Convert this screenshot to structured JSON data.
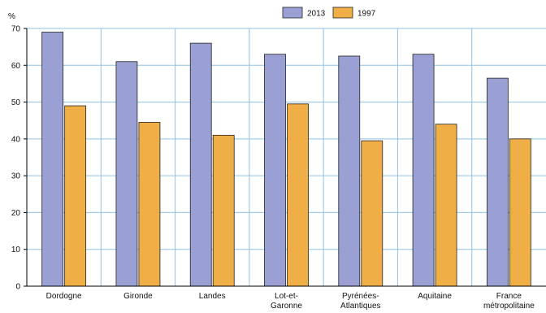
{
  "chart_data": {
    "type": "bar",
    "title": "",
    "ylabel": "%",
    "xlabel": "",
    "ylim": [
      0,
      70
    ],
    "yticks": [
      0,
      10,
      20,
      30,
      40,
      50,
      60,
      70
    ],
    "grid": true,
    "legend_position": "top-center",
    "categories": [
      [
        "Dordogne"
      ],
      [
        "Gironde"
      ],
      [
        "Landes"
      ],
      [
        "Lot-et-",
        "Garonne"
      ],
      [
        "Pyrénées-",
        "Atlantiques"
      ],
      [
        "Aquitaine"
      ],
      [
        "France",
        "métropolitaine"
      ]
    ],
    "series": [
      {
        "name": "2013",
        "color": "#9a9fd4",
        "values": [
          69,
          61,
          66,
          63,
          62.5,
          63,
          56.5
        ]
      },
      {
        "name": "1997",
        "color": "#f0ae46",
        "values": [
          49,
          44.5,
          41,
          49.5,
          39.5,
          44,
          40
        ]
      }
    ]
  }
}
